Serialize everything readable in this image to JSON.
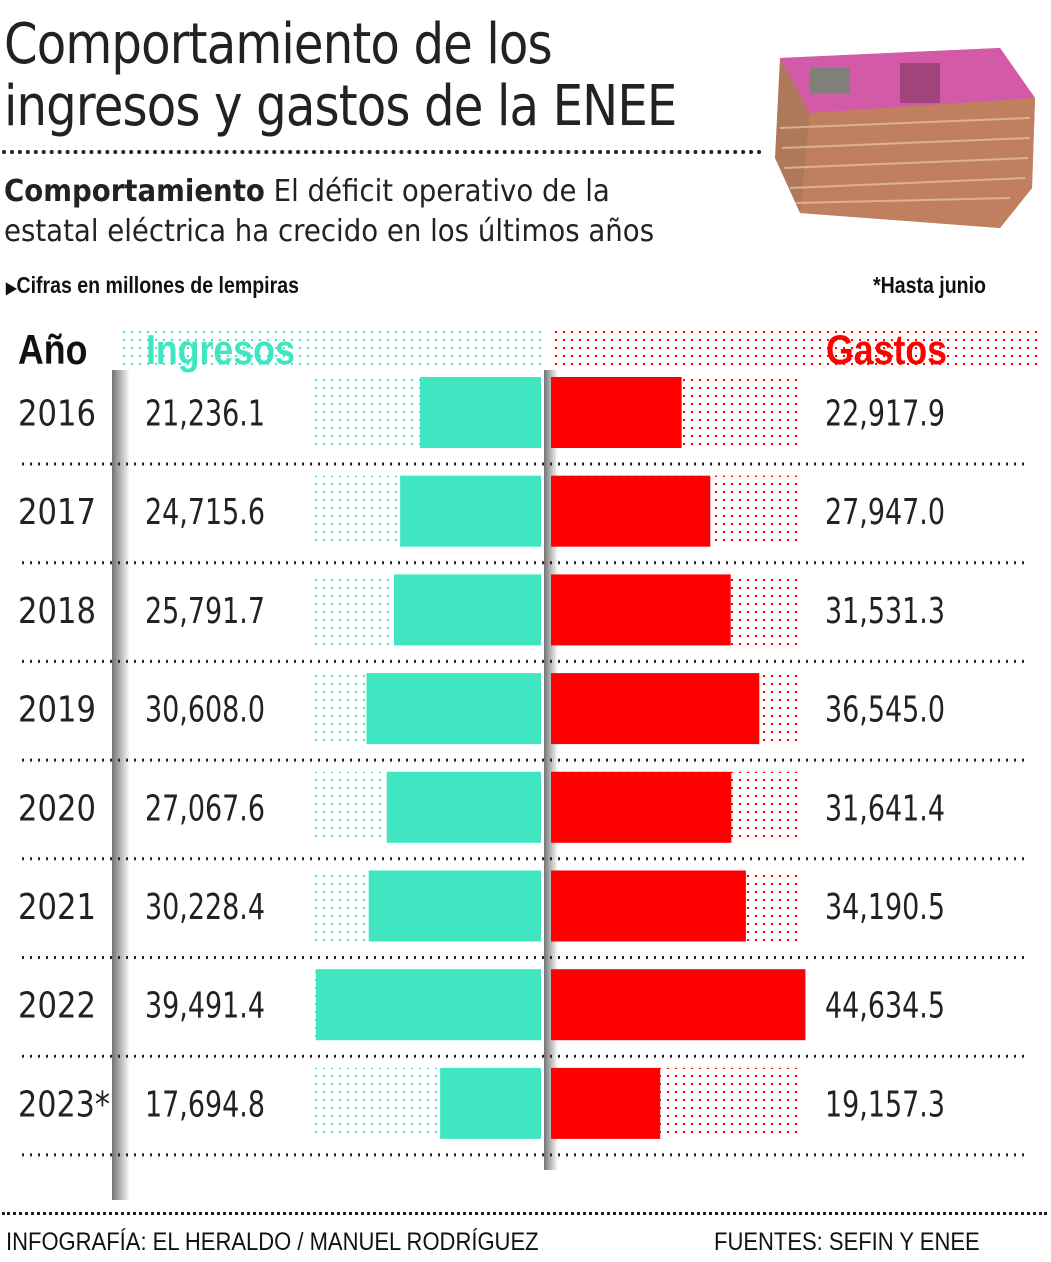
{
  "title_line1": "Comportamiento de los",
  "title_line2": "ingresos y gastos de la ENEE",
  "subtitle_bold": "Comportamiento",
  "subtitle_line1": " El déficit operativo de la",
  "subtitle_line2": "estatal eléctrica ha crecido en los últimos años",
  "units_note": "Cifras en millones de lempiras",
  "footnote": "*Hasta junio",
  "credit": "INFOGRAFÍA: EL HERALDO / MANUEL RODRÍGUEZ",
  "sources": "FUENTES: SEFIN  Y ENEE",
  "colors": {
    "ingresos": "#40e5c2",
    "gastos": "#ff0000"
  },
  "chart_data": {
    "type": "bar",
    "orientation": "horizontal-diverging",
    "column_headers": {
      "year": "Año",
      "left": "Ingresos",
      "right": "Gastos"
    },
    "categories": [
      "2016",
      "2017",
      "2018",
      "2019",
      "2020",
      "2021",
      "2022",
      "2023*"
    ],
    "series": [
      {
        "name": "Ingresos",
        "values": [
          21236.1,
          24715.6,
          25791.7,
          30608.0,
          27067.6,
          30228.4,
          39491.4,
          17694.8
        ],
        "labels": [
          "21,236.1",
          "24,715.6",
          "25,791.7",
          "30,608.0",
          "27,067.6",
          "30,228.4",
          "39,491.4",
          "17,694.8"
        ]
      },
      {
        "name": "Gastos",
        "values": [
          22917.9,
          27947.0,
          31531.3,
          36545.0,
          31641.4,
          34190.5,
          44634.5,
          19157.3
        ],
        "labels": [
          "22,917.9",
          "27,947.0",
          "31,531.3",
          "36,545.0",
          "31,641.4",
          "34,190.5",
          "44,634.5",
          "19,157.3"
        ]
      }
    ]
  }
}
